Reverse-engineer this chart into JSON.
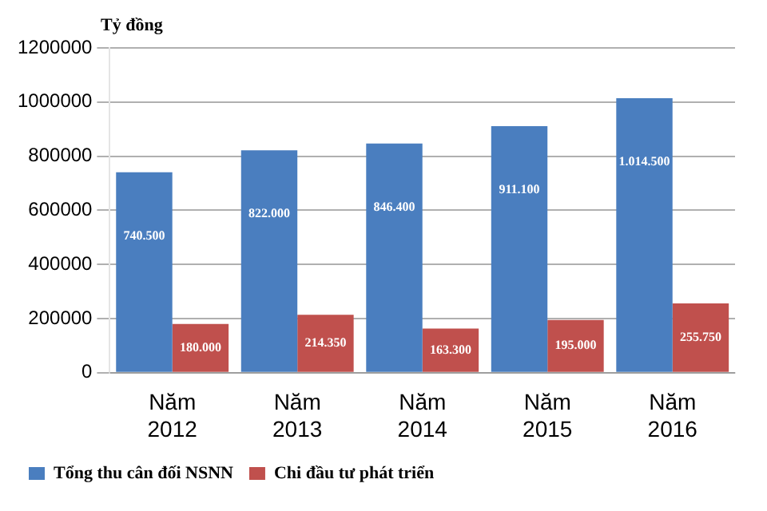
{
  "chart_data": {
    "type": "bar",
    "ylabel": "Tỷ đồng",
    "categories": [
      "Năm 2012",
      "Năm 2013",
      "Năm 2014",
      "Năm 2015",
      "Năm 2016"
    ],
    "series": [
      {
        "name": "Tổng thu cân đối NSNN",
        "color": "#4a7ebf",
        "values": [
          740500,
          822000,
          846400,
          911100,
          1014500
        ],
        "value_labels": [
          "740.500",
          "822.000",
          "846.400",
          "911.100",
          "1.014.500"
        ]
      },
      {
        "name": "Chi đầu tư phát triển",
        "color": "#c0504d",
        "values": [
          180000,
          214350,
          163300,
          195000,
          255750
        ],
        "value_labels": [
          "180.000",
          "214.350",
          "163.300",
          "195.000",
          "255.750"
        ]
      }
    ],
    "ylim": [
      0,
      1200000
    ],
    "yticks": [
      0,
      200000,
      400000,
      600000,
      800000,
      1000000,
      1200000
    ],
    "grid": "y",
    "legend": "bottom left"
  }
}
